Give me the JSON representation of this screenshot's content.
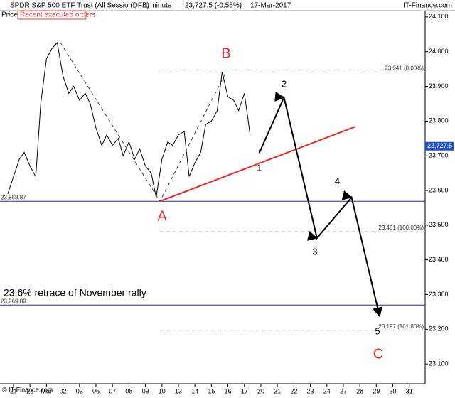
{
  "chart_data": {
    "type": "line",
    "title": "SPDR S&P 500 ETF Trust (All Sessio (DFB)",
    "interval": "1 minute",
    "last": "23,727.5 (-0.55%)",
    "date": "17-Mar-2017",
    "source": "IT-Finance.com",
    "panel_label": "Price",
    "button": "Recent executed orders",
    "copyright": "© IT-Finance.com",
    "annotation": "23.6% retrace of November rally",
    "xlim": [
      -0.82,
      24.96
    ],
    "xticks": [
      {
        "value": 0,
        "label": "27"
      },
      {
        "value": 1,
        "label": "28"
      },
      {
        "value": 2,
        "label": "Mar"
      },
      {
        "value": 3,
        "label": "02"
      },
      {
        "value": 4,
        "label": "03"
      },
      {
        "value": 5,
        "label": "06"
      },
      {
        "value": 6,
        "label": "07"
      },
      {
        "value": 7,
        "label": "08"
      },
      {
        "value": 8,
        "label": "09"
      },
      {
        "value": 9,
        "label": "10"
      },
      {
        "value": 10,
        "label": "13"
      },
      {
        "value": 11,
        "label": "14"
      },
      {
        "value": 12,
        "label": "15"
      },
      {
        "value": 13,
        "label": "16"
      },
      {
        "value": 14,
        "label": "17"
      },
      {
        "value": 15,
        "label": "20"
      },
      {
        "value": 16,
        "label": "21"
      },
      {
        "value": 17,
        "label": "22"
      },
      {
        "value": 18,
        "label": "23"
      },
      {
        "value": 19,
        "label": "24"
      },
      {
        "value": 20,
        "label": "27"
      },
      {
        "value": 21,
        "label": "28"
      },
      {
        "value": 22,
        "label": "29"
      },
      {
        "value": 23,
        "label": "30"
      },
      {
        "value": 24,
        "label": "31"
      }
    ],
    "ylim": [
      23043,
      24112
    ],
    "yticks": [
      {
        "value": 23100,
        "label": "23,100"
      },
      {
        "value": 23200,
        "label": "23,200"
      },
      {
        "value": 23300,
        "label": "23,300"
      },
      {
        "value": 23400,
        "label": "23,400"
      },
      {
        "value": 23500,
        "label": "23,500"
      },
      {
        "value": 23600,
        "label": "23,600"
      },
      {
        "value": 23700,
        "label": "23,700"
      },
      {
        "value": 23800,
        "label": "23,800"
      },
      {
        "value": 23900,
        "label": "23,900"
      },
      {
        "value": 24000,
        "label": "24,000"
      },
      {
        "value": 24100,
        "label": "24,100"
      }
    ],
    "price": {
      "color": "#000000",
      "x": [
        -0.35,
        0,
        0.35,
        0.65,
        1,
        1.35,
        1.65,
        2,
        2.35,
        2.65,
        3,
        3.35,
        3.65,
        4,
        4.35,
        4.65,
        5,
        5.35,
        5.65,
        6,
        6.35,
        6.65,
        7,
        7.35,
        7.65,
        8,
        8.35,
        8.65,
        9,
        9.35,
        9.65,
        10,
        10.35,
        10.65,
        11,
        11.35,
        11.65,
        12,
        12.35,
        12.65,
        13,
        13.35,
        13.65,
        14,
        14.35
      ],
      "values": [
        23590,
        23640,
        23690,
        23710,
        23670,
        23640,
        23850,
        23980,
        24010,
        24026,
        23930,
        23880,
        23900,
        23860,
        23880,
        23850,
        23780,
        23730,
        23760,
        23730,
        23750,
        23700,
        23740,
        23690,
        23720,
        23670,
        23650,
        23580,
        23690,
        23740,
        23730,
        23760,
        23770,
        23640,
        23680,
        23710,
        23790,
        23800,
        23830,
        23941,
        23870,
        23860,
        23830,
        23880,
        23760
      ]
    },
    "current_price": {
      "value": 23727.5,
      "label": "23,727.5",
      "color": "#1e50c8"
    },
    "levels": [
      {
        "value": 23941,
        "label": "23,941 (0.00%)",
        "style": "dashed",
        "color": "#aaaaaa"
      },
      {
        "value": 23481,
        "label": "23,481 (100.00%)",
        "style": "dashed",
        "color": "#aaaaaa"
      },
      {
        "value": 23197,
        "label": "23,197 (161.80%)",
        "style": "dashed",
        "color": "#aaaaaa"
      },
      {
        "value": 23568.87,
        "label": "23,568.87",
        "style": "solid",
        "color": "#2a2a9a"
      },
      {
        "value": 23269.89,
        "label": "23,269.89",
        "style": "solid",
        "color": "#2a2a9a"
      }
    ],
    "trendline": {
      "color": "#e8282a",
      "x": [
        8.88,
        20.73
      ],
      "values": [
        23568.87,
        23784
      ]
    },
    "swing": {
      "color": "#444444",
      "x": [
        2.84,
        8.88,
        12.89
      ],
      "values": [
        24026,
        23568.87,
        23941
      ]
    },
    "projection": {
      "color": "#000000",
      "x": [
        14.9,
        16.4,
        18.4,
        20.5,
        22.2
      ],
      "values": [
        23708,
        23868,
        23463,
        23580,
        23237
      ],
      "labels": [
        "1",
        "2",
        "3",
        "4",
        "5"
      ]
    },
    "abc": {
      "labels": [
        "A",
        "B",
        "C"
      ],
      "color": "#e8282a"
    }
  }
}
